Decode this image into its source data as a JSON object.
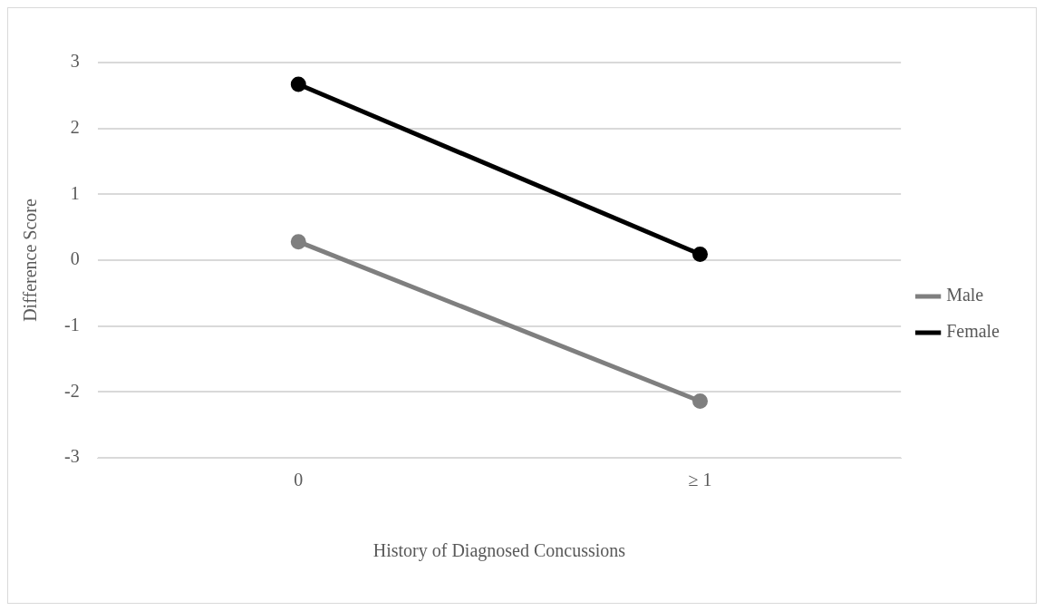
{
  "chart_data": {
    "type": "line",
    "xlabel": "History of Diagnosed Concussions",
    "ylabel": "Difference Score",
    "categories": [
      "0",
      "≥ 1"
    ],
    "series": [
      {
        "name": "Male",
        "color": "#7f7f7f",
        "values": [
          0.28,
          -2.14
        ]
      },
      {
        "name": "Female",
        "color": "#000000",
        "values": [
          2.67,
          0.09
        ]
      }
    ],
    "ylim": [
      -3,
      3
    ],
    "yticks": [
      -3,
      -2,
      -1,
      0,
      1,
      2,
      3
    ],
    "grid": "y",
    "legend": "right",
    "marker": "circle",
    "line_style": "solid"
  }
}
